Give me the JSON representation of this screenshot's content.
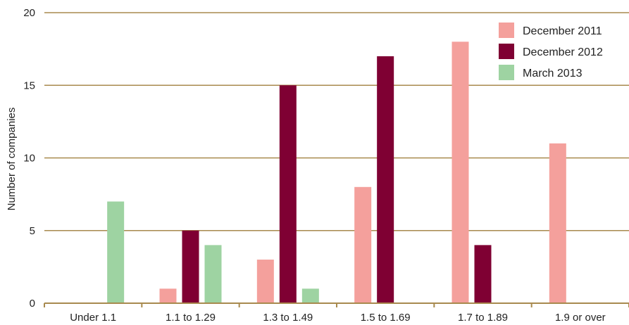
{
  "chart_data": {
    "type": "bar",
    "title": "",
    "xlabel": "",
    "ylabel": "Number of companies",
    "ylim": [
      0,
      20
    ],
    "yticks": [
      0,
      5,
      10,
      15,
      20
    ],
    "grid": true,
    "legend_position": "top-right",
    "categories": [
      "Under 1.1",
      "1.1 to 1.29",
      "1.3 to 1.49",
      "1.5 to 1.69",
      "1.7 to 1.89",
      "1.9 or over"
    ],
    "series": [
      {
        "name": "December 2011",
        "color": "#F4A09C",
        "values": [
          0,
          1,
          3,
          8,
          18,
          11
        ]
      },
      {
        "name": "December 2012",
        "color": "#7F0033",
        "values": [
          0,
          5,
          15,
          17,
          4,
          0
        ]
      },
      {
        "name": "March 2013",
        "color": "#9ED3A2",
        "values": [
          7,
          4,
          1,
          0,
          0,
          0
        ]
      }
    ],
    "gridline_color": "#A88A4E"
  }
}
